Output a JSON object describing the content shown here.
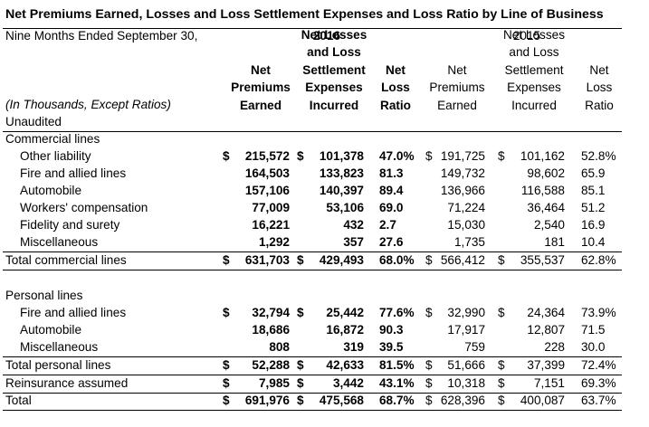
{
  "title": "Net Premiums Earned, Losses and Loss Settlement Expenses and Loss Ratio by Line of Business",
  "period_label": "Nine Months Ended September 30,",
  "year_2016": "2016",
  "year_2015": "2015",
  "units_label": "(In Thousands, Except Ratios)",
  "unaudited": "Unaudited",
  "headers_2016": {
    "npe": [
      "Net",
      "Premiums",
      "Earned"
    ],
    "nll": [
      "Net Losses",
      "and Loss",
      "Settlement",
      "Expenses",
      "Incurred"
    ],
    "nlr": [
      "Net",
      "Loss",
      "Ratio"
    ]
  },
  "headers_2015": {
    "npe": [
      "Net",
      "Premiums",
      "Earned"
    ],
    "nll": [
      "Net Losses",
      "and Loss",
      "Settlement",
      "Expenses",
      "Incurred"
    ],
    "nlr": [
      "Net",
      "Loss",
      "Ratio"
    ]
  },
  "commercial_heading": "Commercial lines",
  "commercial_rows": [
    {
      "label": "Other liability",
      "d1": "$",
      "npe16": "215,572",
      "d2": "$",
      "nll16": "101,378",
      "nlr16": "47.0%",
      "d3": "$",
      "npe15": "191,725",
      "d4": "$",
      "nll15": "101,162",
      "nlr15": "52.8%"
    },
    {
      "label": "Fire and allied lines",
      "d1": "",
      "npe16": "164,503",
      "d2": "",
      "nll16": "133,823",
      "nlr16": "81.3",
      "d3": "",
      "npe15": "149,732",
      "d4": "",
      "nll15": "98,602",
      "nlr15": "65.9"
    },
    {
      "label": "Automobile",
      "d1": "",
      "npe16": "157,106",
      "d2": "",
      "nll16": "140,397",
      "nlr16": "89.4",
      "d3": "",
      "npe15": "136,966",
      "d4": "",
      "nll15": "116,588",
      "nlr15": "85.1"
    },
    {
      "label": "Workers' compensation",
      "d1": "",
      "npe16": "77,009",
      "d2": "",
      "nll16": "53,106",
      "nlr16": "69.0",
      "d3": "",
      "npe15": "71,224",
      "d4": "",
      "nll15": "36,464",
      "nlr15": "51.2"
    },
    {
      "label": "Fidelity and surety",
      "d1": "",
      "npe16": "16,221",
      "d2": "",
      "nll16": "432",
      "nlr16": "2.7",
      "d3": "",
      "npe15": "15,030",
      "d4": "",
      "nll15": "2,540",
      "nlr15": "16.9"
    },
    {
      "label": "Miscellaneous",
      "d1": "",
      "npe16": "1,292",
      "d2": "",
      "nll16": "357",
      "nlr16": "27.6",
      "d3": "",
      "npe15": "1,735",
      "d4": "",
      "nll15": "181",
      "nlr15": "10.4"
    }
  ],
  "total_commercial": {
    "label": "Total commercial lines",
    "d1": "$",
    "npe16": "631,703",
    "d2": "$",
    "nll16": "429,493",
    "nlr16": "68.0%",
    "d3": "$",
    "npe15": "566,412",
    "d4": "$",
    "nll15": "355,537",
    "nlr15": "62.8%"
  },
  "personal_heading": "Personal lines",
  "personal_rows": [
    {
      "label": "Fire and allied lines",
      "d1": "$",
      "npe16": "32,794",
      "d2": "$",
      "nll16": "25,442",
      "nlr16": "77.6%",
      "d3": "$",
      "npe15": "32,990",
      "d4": "$",
      "nll15": "24,364",
      "nlr15": "73.9%"
    },
    {
      "label": "Automobile",
      "d1": "",
      "npe16": "18,686",
      "d2": "",
      "nll16": "16,872",
      "nlr16": "90.3",
      "d3": "",
      "npe15": "17,917",
      "d4": "",
      "nll15": "12,807",
      "nlr15": "71.5"
    },
    {
      "label": "Miscellaneous",
      "d1": "",
      "npe16": "808",
      "d2": "",
      "nll16": "319",
      "nlr16": "39.5",
      "d3": "",
      "npe15": "759",
      "d4": "",
      "nll15": "228",
      "nlr15": "30.0"
    }
  ],
  "total_personal": {
    "label": "Total personal lines",
    "d1": "$",
    "npe16": "52,288",
    "d2": "$",
    "nll16": "42,633",
    "nlr16": "81.5%",
    "d3": "$",
    "npe15": "51,666",
    "d4": "$",
    "nll15": "37,399",
    "nlr15": "72.4%"
  },
  "reinsurance": {
    "label": "Reinsurance assumed",
    "d1": "$",
    "npe16": "7,985",
    "d2": "$",
    "nll16": "3,442",
    "nlr16": "43.1%",
    "d3": "$",
    "npe15": "10,318",
    "d4": "$",
    "nll15": "7,151",
    "nlr15": "69.3%"
  },
  "grand_total": {
    "label": "Total",
    "d1": "$",
    "npe16": "691,976",
    "d2": "$",
    "nll16": "475,568",
    "nlr16": "68.7%",
    "d3": "$",
    "npe15": "628,396",
    "d4": "$",
    "nll15": "400,087",
    "nlr15": "63.7%"
  }
}
